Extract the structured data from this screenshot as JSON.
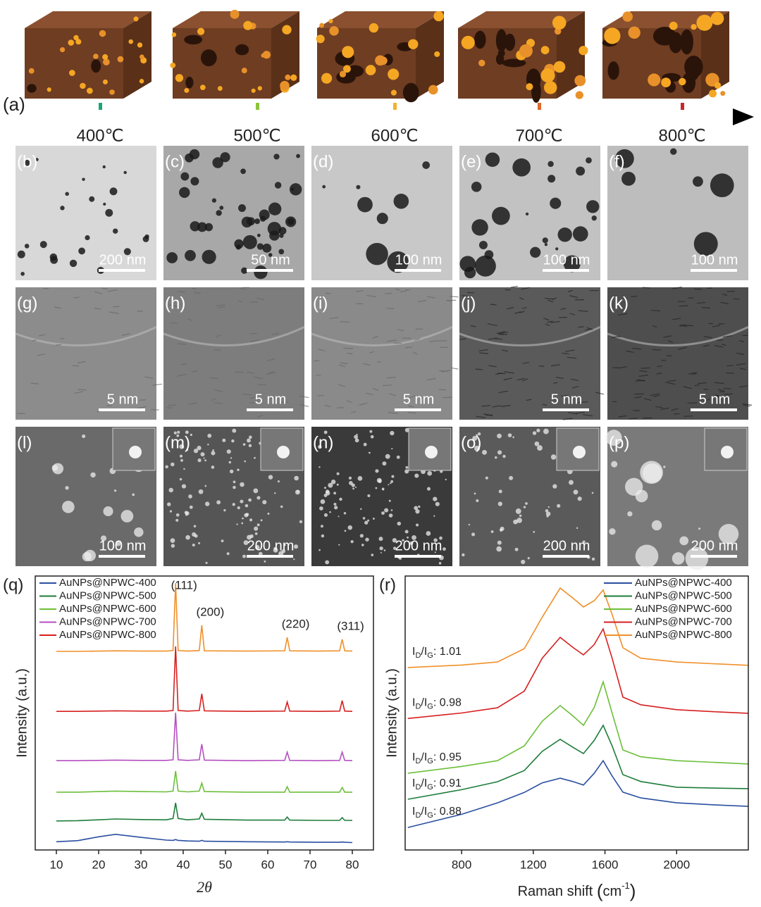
{
  "panel_a": {
    "label": "(a)",
    "temperatures": [
      "400℃",
      "500℃",
      "600℃",
      "700℃",
      "800℃"
    ]
  },
  "image_panels": [
    {
      "label": "(b)",
      "scale": "200 nm"
    },
    {
      "label": "(c)",
      "scale": "50 nm"
    },
    {
      "label": "(d)",
      "scale": "100 nm"
    },
    {
      "label": "(e)",
      "scale": "100 nm"
    },
    {
      "label": "(f)",
      "scale": "100 nm"
    },
    {
      "label": "(g)",
      "scale": "5 nm"
    },
    {
      "label": "(h)",
      "scale": "5 nm"
    },
    {
      "label": "(i)",
      "scale": "5 nm"
    },
    {
      "label": "(j)",
      "scale": "5 nm"
    },
    {
      "label": "(k)",
      "scale": "5 nm"
    },
    {
      "label": "(l)",
      "scale": "100 nm"
    },
    {
      "label": "(m)",
      "scale": "200 nm"
    },
    {
      "label": "(n)",
      "scale": "200 nm"
    },
    {
      "label": "(o)",
      "scale": "200 nm"
    },
    {
      "label": "(p)",
      "scale": "200 nm"
    }
  ],
  "chart_data": [
    {
      "type": "line",
      "panel_label": "(q)",
      "xlabel": "2θ",
      "ylabel": "Intensity (a.u.)",
      "x": [
        10,
        15,
        20,
        24,
        30,
        36,
        37.6,
        38.2,
        38.8,
        41,
        43.8,
        44.4,
        45,
        55,
        64,
        64.6,
        65.2,
        72,
        77,
        77.6,
        78.2,
        80
      ],
      "xlim": [
        5,
        85
      ],
      "xticks": [
        10,
        20,
        30,
        40,
        50,
        60,
        70,
        80
      ],
      "ylim": [
        0,
        100
      ],
      "legend": "upper left",
      "series": [
        {
          "name": "AuNPs@NPWC-400",
          "color": "#2a4fa0",
          "values": [
            3.0,
            3.4,
            4.8,
            5.7,
            4.6,
            3.6,
            3.5,
            3.8,
            3.5,
            3.3,
            3.2,
            3.5,
            3.2,
            3.0,
            2.9,
            3.0,
            2.9,
            2.8,
            2.8,
            2.9,
            2.8,
            2.7
          ]
        },
        {
          "name": "AuNPs@NPWC-500",
          "color": "#1e7d3a",
          "values": [
            10.6,
            10.7,
            11,
            11.3,
            11.1,
            11,
            11.5,
            17.2,
            11.5,
            11,
            11.3,
            13.4,
            11.2,
            10.9,
            10.9,
            12,
            10.9,
            10.8,
            10.8,
            11.8,
            10.8,
            10.8
          ]
        },
        {
          "name": "AuNPs@NPWC-600",
          "color": "#6cbf3a",
          "values": [
            21.1,
            21.1,
            21.3,
            21.5,
            21.3,
            21.2,
            21.5,
            28.8,
            21.5,
            21.2,
            21.5,
            24.4,
            21.3,
            21.1,
            21.1,
            23.1,
            21.1,
            21.1,
            21.1,
            22.8,
            21.1,
            21.1
          ]
        },
        {
          "name": "AuNPs@NPWC-700",
          "color": "#b44fc0",
          "values": [
            32.6,
            32.6,
            32.7,
            32.8,
            32.7,
            32.7,
            32.9,
            50.1,
            32.9,
            32.7,
            32.9,
            38.6,
            32.8,
            32.6,
            32.7,
            35.7,
            32.7,
            32.6,
            32.7,
            35.7,
            32.7,
            32.6
          ]
        },
        {
          "name": "AuNPs@NPWC-800",
          "color": "#d62020",
          "values": [
            50.6,
            50.6,
            50.7,
            50.8,
            50.7,
            50.7,
            50.9,
            74.3,
            50.9,
            50.7,
            50.9,
            57,
            50.8,
            50.6,
            50.7,
            54,
            50.7,
            50.6,
            50.7,
            54.5,
            50.7,
            50.6
          ]
        },
        {
          "color": "#f0902a",
          "values": [
            72.5,
            72.5,
            72.6,
            72.7,
            72.6,
            72.6,
            72.8,
            97.4,
            72.8,
            72.6,
            72.8,
            82,
            72.7,
            72.6,
            72.7,
            77.6,
            72.7,
            72.6,
            72.7,
            76.9,
            72.7,
            72.6
          ]
        }
      ],
      "annotations": [
        {
          "text": "(111)",
          "x": 38.2
        },
        {
          "text": "(200)",
          "x": 44.4
        },
        {
          "text": "(220)",
          "x": 64.6
        },
        {
          "text": "(311)",
          "x": 77.6
        }
      ]
    },
    {
      "type": "line",
      "panel_label": "(r)",
      "xlabel": "Raman shift",
      "xlabel_unit": [
        "(",
        "cm",
        "-1",
        ")"
      ],
      "ylabel": "Intensity (a.u.)",
      "ratio_label": [
        "I",
        "D",
        "/I",
        "G",
        ": "
      ],
      "x": [
        500,
        800,
        1000,
        1150,
        1250,
        1350,
        1420,
        1480,
        1540,
        1590,
        1640,
        1700,
        1800,
        2000,
        2200,
        2400
      ],
      "xlim": [
        485,
        2400
      ],
      "xticks": [
        800,
        1200,
        1600,
        2000
      ],
      "ylim": [
        0,
        100
      ],
      "legend": "upper right",
      "series": [
        {
          "name": "AuNPs@NPWC-400",
          "color": "#2a4fa0",
          "id_ig": 0.88,
          "values": [
            8.2,
            13,
            17.2,
            21,
            24.5,
            26.2,
            25,
            23.7,
            28,
            32.6,
            27,
            21.1,
            19,
            17.2,
            16.5,
            15.9
          ]
        },
        {
          "name": "AuNPs@NPWC-500",
          "color": "#1e7d3a",
          "id_ig": 0.91,
          "values": [
            18.5,
            22,
            24.9,
            29,
            36,
            40.4,
            37.5,
            35.2,
            40,
            45.5,
            38,
            27.5,
            25,
            22.9,
            22.6,
            22.4
          ]
        },
        {
          "name": "AuNPs@NPWC-600",
          "color": "#6cbf3a",
          "id_ig": 0.95,
          "values": [
            28,
            30.5,
            32.6,
            38,
            47,
            52.7,
            49,
            45.5,
            52,
            61.4,
            50,
            36.5,
            34,
            32.6,
            32,
            31.4
          ]
        },
        {
          "name": "AuNPs@NPWC-700",
          "color": "#d62020",
          "id_ig": 0.98,
          "values": [
            48,
            50,
            51.9,
            58,
            70,
            77.6,
            74,
            71.2,
            75,
            80.7,
            70,
            55.8,
            53,
            51.2,
            50.5,
            49.9
          ]
        },
        {
          "name": "AuNPs@NPWC-800",
          "color": "#f0902a",
          "id_ig": 1.01,
          "values": [
            66.6,
            67.5,
            68.6,
            73.5,
            85,
            95.6,
            92,
            88.7,
            91,
            94.9,
            86,
            73.8,
            70,
            68.6,
            68,
            67.4
          ]
        }
      ]
    }
  ]
}
